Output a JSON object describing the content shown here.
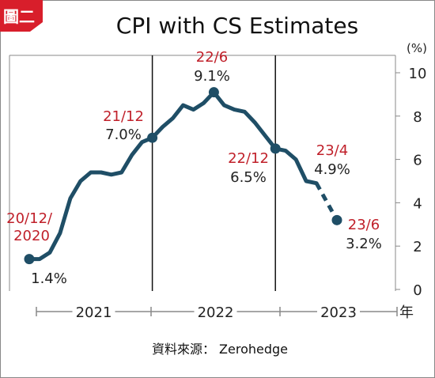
{
  "badge": "圖二",
  "source": "資料來源： Zerohedge",
  "chart_data": {
    "type": "line",
    "title": "CPI with CS Estimates",
    "unit_label": "(%)",
    "x_axis_suffix": "年",
    "ylim": [
      0,
      10
    ],
    "yticks": [
      0,
      2,
      4,
      6,
      8,
      10
    ],
    "grid": false,
    "year_labels": [
      "2021",
      "2022",
      "2023"
    ],
    "x_range": [
      "2020-12",
      "2023-06"
    ],
    "series": [
      {
        "actual": [
          [
            "2020-12",
            1.4
          ],
          [
            "2021-01",
            1.4
          ],
          [
            "2021-02",
            1.7
          ],
          [
            "2021-03",
            2.6
          ],
          [
            "2021-04",
            4.2
          ],
          [
            "2021-05",
            5.0
          ],
          [
            "2021-06",
            5.4
          ],
          [
            "2021-07",
            5.4
          ],
          [
            "2021-08",
            5.3
          ],
          [
            "2021-09",
            5.4
          ],
          [
            "2021-10",
            6.2
          ],
          [
            "2021-11",
            6.8
          ],
          [
            "2021-12",
            7.0
          ],
          [
            "2022-01",
            7.5
          ],
          [
            "2022-02",
            7.9
          ],
          [
            "2022-03",
            8.5
          ],
          [
            "2022-04",
            8.3
          ],
          [
            "2022-05",
            8.6
          ],
          [
            "2022-06",
            9.1
          ],
          [
            "2022-07",
            8.5
          ],
          [
            "2022-08",
            8.3
          ],
          [
            "2022-09",
            8.2
          ],
          [
            "2022-10",
            7.7
          ],
          [
            "2022-11",
            7.1
          ],
          [
            "2022-12",
            6.5
          ],
          [
            "2023-01",
            6.4
          ],
          [
            "2023-02",
            6.0
          ],
          [
            "2023-03",
            5.0
          ],
          [
            "2023-04",
            4.9
          ]
        ],
        "estimate": [
          [
            "2023-04",
            4.9
          ],
          [
            "2023-06",
            3.2
          ]
        ]
      }
    ],
    "markers": [
      "2020-12",
      "2021-12",
      "2022-06",
      "2022-12",
      "2023-06"
    ],
    "dividers": [
      "2021-12",
      "2022-12"
    ],
    "annotations": [
      {
        "date_text": "20/12/\n2020",
        "value_text": "1.4%"
      },
      {
        "date_text": "21/12",
        "value_text": "7.0%"
      },
      {
        "date_text": "22/6",
        "value_text": "9.1%"
      },
      {
        "date_text": "22/12",
        "value_text": "6.5%"
      },
      {
        "date_text": "23/4",
        "value_text": "4.9%"
      },
      {
        "date_text": "23/6",
        "value_text": "3.2%"
      }
    ],
    "colors": {
      "line": "#1f4e66",
      "annotation_date": "#c0202a",
      "annotation_value": "#222222",
      "badge_bg": "#d81e2b",
      "frame": "#888888",
      "divider": "#111111"
    }
  }
}
